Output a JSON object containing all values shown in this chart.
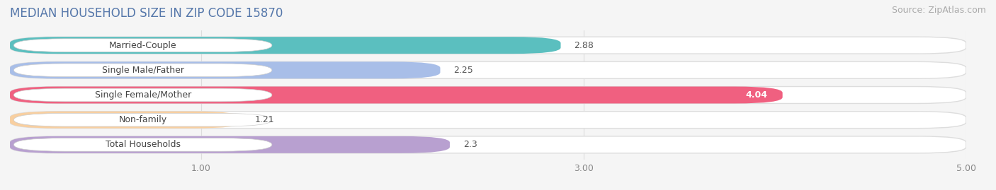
{
  "title": "MEDIAN HOUSEHOLD SIZE IN ZIP CODE 15870",
  "source": "Source: ZipAtlas.com",
  "categories": [
    "Married-Couple",
    "Single Male/Father",
    "Single Female/Mother",
    "Non-family",
    "Total Households"
  ],
  "values": [
    2.88,
    2.25,
    4.04,
    1.21,
    2.3
  ],
  "bar_colors": [
    "#5BBFBF",
    "#A8BEE8",
    "#F06080",
    "#F8CFA0",
    "#B8A0D0"
  ],
  "bar_edge_colors": [
    "#5BBFBF",
    "#A8BEE8",
    "#F06080",
    "#F8CFA0",
    "#B8A0D0"
  ],
  "xlim": [
    0,
    5.0
  ],
  "xticks": [
    1.0,
    3.0,
    5.0
  ],
  "background_color": "#f5f5f5",
  "bar_bg_color": "#ffffff",
  "bar_bg_edge_color": "#dddddd",
  "title_color": "#5577aa",
  "title_fontsize": 12,
  "source_fontsize": 9,
  "label_fontsize": 9,
  "value_fontsize": 9,
  "value_color_light": "#ffffff",
  "value_color_dark": "#555555"
}
